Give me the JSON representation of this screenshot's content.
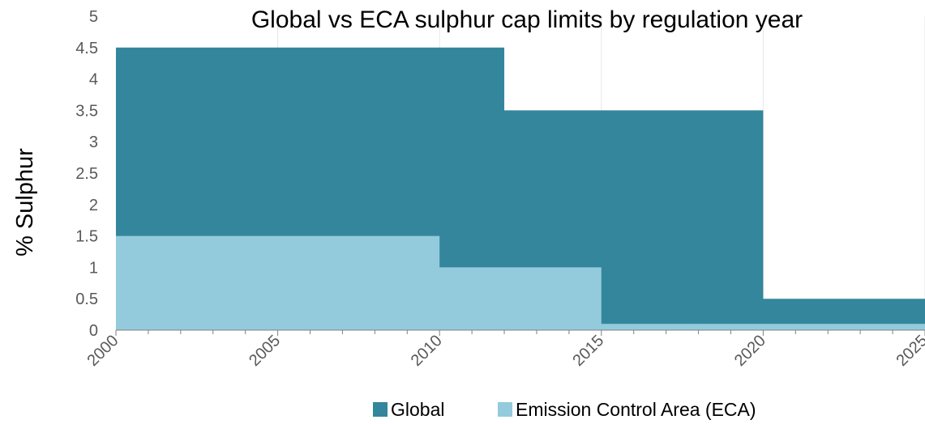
{
  "chart_data": {
    "type": "area",
    "title": "Global vs ECA sulphur cap limits by regulation year",
    "ylabel": "% Sulphur",
    "xlabel": "",
    "xlim": [
      2000,
      2025
    ],
    "ylim": [
      0,
      5
    ],
    "x_ticks": [
      2000,
      2005,
      2010,
      2015,
      2020,
      2025
    ],
    "y_ticks": [
      0,
      0.5,
      1,
      1.5,
      2,
      2.5,
      3,
      3.5,
      4,
      4.5,
      5
    ],
    "grid": "vertical",
    "legend_position": "bottom",
    "series": [
      {
        "name": "Global",
        "color": "#33869c",
        "step": "post",
        "x": [
          2000,
          2012,
          2020,
          2025
        ],
        "y": [
          4.5,
          3.5,
          0.5,
          0.5
        ]
      },
      {
        "name": "Emission Control Area (ECA)",
        "color": "#93cbdc",
        "step": "post",
        "x": [
          2000,
          2010,
          2015,
          2025
        ],
        "y": [
          1.5,
          1.0,
          0.1,
          0.1
        ]
      }
    ]
  }
}
